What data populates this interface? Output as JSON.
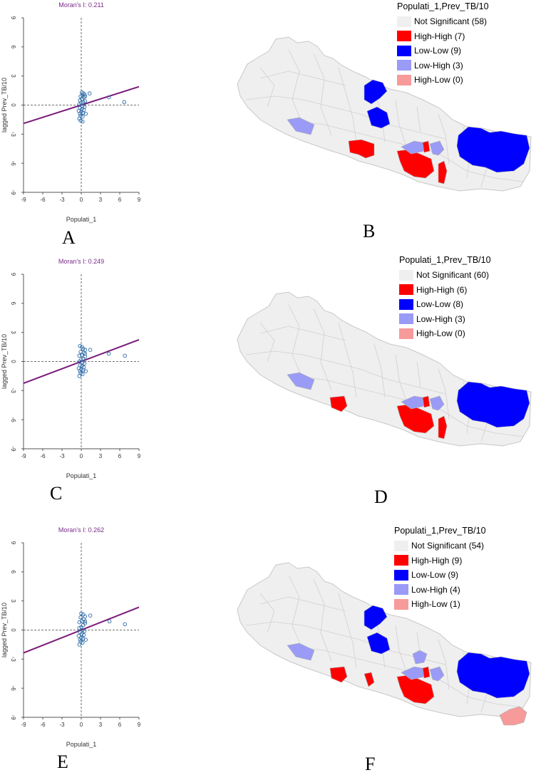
{
  "colors": {
    "not_significant": "#efefef",
    "high_high": "#ff0000",
    "low_low": "#0000ff",
    "low_high": "#9a9af7",
    "high_low": "#f79a9a",
    "regression_line": "#7a1a7a",
    "point": "#2a6aa8",
    "title": "#7a2a8a"
  },
  "chart_data": [
    {
      "panel": "A",
      "type": "scatter",
      "title": "Moran's I: 0.211",
      "xlabel": "Populati_1",
      "ylabel": "lagged Prev_TB/10",
      "xlim": [
        -9,
        9
      ],
      "ylim": [
        -9,
        9
      ],
      "x_ticks": [
        "-9",
        "-6",
        "-3",
        "0",
        "3",
        "6",
        "9"
      ],
      "y_ticks": [
        "-9",
        "-6",
        "-3",
        "0",
        "3",
        "6",
        "9"
      ],
      "slope": 0.211,
      "intercept": 0.0,
      "points": [
        [
          0.1,
          1.3
        ],
        [
          0.3,
          1.2
        ],
        [
          0.2,
          1.0
        ],
        [
          0.5,
          1.1
        ],
        [
          -0.1,
          0.9
        ],
        [
          0.4,
          0.8
        ],
        [
          0.1,
          0.6
        ],
        [
          -0.2,
          0.5
        ],
        [
          0.6,
          0.4
        ],
        [
          0.3,
          0.3
        ],
        [
          0.0,
          0.2
        ],
        [
          -0.3,
          0.1
        ],
        [
          0.2,
          -0.1
        ],
        [
          0.5,
          -0.2
        ],
        [
          -0.2,
          -0.3
        ],
        [
          0.1,
          -0.4
        ],
        [
          0.4,
          -0.5
        ],
        [
          -0.4,
          -0.6
        ],
        [
          0.0,
          -0.7
        ],
        [
          0.3,
          -0.8
        ],
        [
          -0.2,
          -0.9
        ],
        [
          -0.1,
          -1.1
        ],
        [
          0.2,
          -1.2
        ],
        [
          -0.3,
          -1.4
        ],
        [
          -0.1,
          -1.6
        ],
        [
          0.2,
          -1.7
        ],
        [
          0.7,
          -0.9
        ],
        [
          0.6,
          0.9
        ],
        [
          1.3,
          1.2
        ],
        [
          4.3,
          0.8
        ],
        [
          6.7,
          0.3
        ]
      ]
    },
    {
      "panel": "C",
      "type": "scatter",
      "title": "Moran's I: 0.249",
      "xlabel": "Populati_1",
      "ylabel": "lagged Prev_TB/10",
      "xlim": [
        -9,
        9
      ],
      "ylim": [
        -9,
        9
      ],
      "x_ticks": [
        "-9",
        "-6",
        "-3",
        "0",
        "3",
        "6",
        "9"
      ],
      "y_ticks": [
        "-9",
        "-6",
        "-3",
        "0",
        "3",
        "6",
        "9"
      ],
      "slope": 0.249,
      "intercept": 0.0,
      "points": [
        [
          -0.2,
          1.6
        ],
        [
          0.1,
          1.5
        ],
        [
          0.3,
          1.3
        ],
        [
          0.6,
          1.2
        ],
        [
          -0.1,
          1.0
        ],
        [
          0.4,
          0.9
        ],
        [
          0.1,
          0.7
        ],
        [
          -0.3,
          0.6
        ],
        [
          0.6,
          0.5
        ],
        [
          0.3,
          0.3
        ],
        [
          0.0,
          0.2
        ],
        [
          -0.3,
          0.0
        ],
        [
          0.2,
          -0.1
        ],
        [
          0.5,
          -0.2
        ],
        [
          -0.2,
          -0.4
        ],
        [
          0.1,
          -0.5
        ],
        [
          0.4,
          -0.6
        ],
        [
          -0.4,
          -0.7
        ],
        [
          0.0,
          -0.8
        ],
        [
          0.3,
          -0.9
        ],
        [
          -0.2,
          -1.0
        ],
        [
          -0.1,
          -1.2
        ],
        [
          0.2,
          -1.3
        ],
        [
          -0.3,
          -1.5
        ],
        [
          0.7,
          -1.0
        ],
        [
          0.6,
          0.8
        ],
        [
          1.4,
          1.2
        ],
        [
          4.3,
          0.8
        ],
        [
          6.8,
          0.6
        ]
      ]
    },
    {
      "panel": "E",
      "type": "scatter",
      "title": "Moran's I: 0.262",
      "xlabel": "Populati_1",
      "ylabel": "lagged Prev_TB/10",
      "xlim": [
        -9,
        9
      ],
      "ylim": [
        -9,
        9
      ],
      "x_ticks": [
        "-9",
        "-6",
        "-3",
        "0",
        "3",
        "6",
        "9"
      ],
      "y_ticks": [
        "-9",
        "-6",
        "-3",
        "0",
        "3",
        "6",
        "9"
      ],
      "slope": 0.262,
      "intercept": 0.0,
      "points": [
        [
          0.0,
          1.7
        ],
        [
          0.3,
          1.6
        ],
        [
          0.6,
          1.4
        ],
        [
          -0.1,
          1.3
        ],
        [
          0.4,
          1.1
        ],
        [
          0.1,
          0.9
        ],
        [
          -0.3,
          0.8
        ],
        [
          0.6,
          0.7
        ],
        [
          0.3,
          0.5
        ],
        [
          0.0,
          0.3
        ],
        [
          -0.3,
          0.2
        ],
        [
          0.2,
          0.0
        ],
        [
          0.5,
          -0.1
        ],
        [
          -0.2,
          -0.2
        ],
        [
          0.1,
          -0.4
        ],
        [
          0.4,
          -0.5
        ],
        [
          -0.4,
          -0.6
        ],
        [
          0.0,
          -0.8
        ],
        [
          0.3,
          -0.9
        ],
        [
          -0.2,
          -1.0
        ],
        [
          -0.1,
          -1.2
        ],
        [
          0.2,
          -1.3
        ],
        [
          -0.3,
          -1.5
        ],
        [
          0.7,
          -1.0
        ],
        [
          0.6,
          0.9
        ],
        [
          1.4,
          1.5
        ],
        [
          4.4,
          0.9
        ],
        [
          6.8,
          0.6
        ]
      ]
    }
  ],
  "maps": [
    {
      "panel": "B",
      "legend_title": "Populati_1,Prev_TB/10",
      "legend": [
        {
          "label": "Not Significant (58)",
          "color": "#efefef"
        },
        {
          "label": "High-High (7)",
          "color": "#ff0000"
        },
        {
          "label": "Low-Low (9)",
          "color": "#0000ff"
        },
        {
          "label": "Low-High (3)",
          "color": "#9a9af7"
        },
        {
          "label": "High-Low (0)",
          "color": "#f79a9a"
        }
      ]
    },
    {
      "panel": "D",
      "legend_title": "Populati_1,Prev_TB/10",
      "legend": [
        {
          "label": "Not Significant (60)",
          "color": "#efefef"
        },
        {
          "label": "High-High (6)",
          "color": "#ff0000"
        },
        {
          "label": "Low-Low (8)",
          "color": "#0000ff"
        },
        {
          "label": "Low-High (3)",
          "color": "#9a9af7"
        },
        {
          "label": "High-Low (0)",
          "color": "#f79a9a"
        }
      ]
    },
    {
      "panel": "F",
      "legend_title": "Populati_1,Prev_TB/10",
      "legend": [
        {
          "label": "Not Significant (54)",
          "color": "#efefef"
        },
        {
          "label": "High-High (9)",
          "color": "#ff0000"
        },
        {
          "label": "Low-Low (9)",
          "color": "#0000ff"
        },
        {
          "label": "Low-High (4)",
          "color": "#9a9af7"
        },
        {
          "label": "High-Low (1)",
          "color": "#f79a9a"
        }
      ]
    }
  ],
  "panel_labels": [
    "A",
    "B",
    "C",
    "D",
    "E",
    "F"
  ]
}
